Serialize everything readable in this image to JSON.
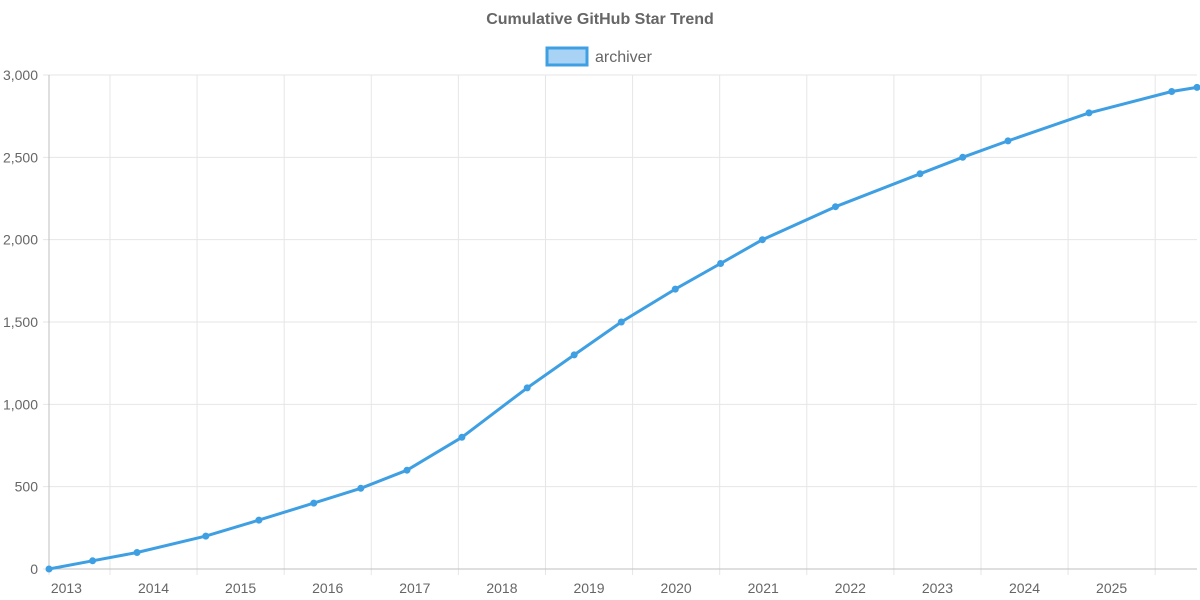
{
  "chart_data": {
    "type": "line",
    "title": "Cumulative GitHub Star Trend",
    "xlabel": "",
    "ylabel": "",
    "x_start": 2012.8,
    "x_end": 2025.98,
    "ylim": [
      0,
      3000
    ],
    "y_ticks": [
      0,
      500,
      1000,
      1500,
      2000,
      2500,
      3000
    ],
    "y_tick_labels": [
      "0",
      "500",
      "1,000",
      "1,500",
      "2,000",
      "2,500",
      "3,000"
    ],
    "x_ticks": [
      2013,
      2014,
      2015,
      2016,
      2017,
      2018,
      2019,
      2020,
      2021,
      2022,
      2023,
      2024,
      2025
    ],
    "x_tick_labels": [
      "2013",
      "2014",
      "2015",
      "2016",
      "2017",
      "2018",
      "2019",
      "2020",
      "2021",
      "2022",
      "2023",
      "2024",
      "2025"
    ],
    "grid": true,
    "legend_position": "top-center",
    "series": [
      {
        "name": "archiver",
        "color": "#3f9fe3",
        "fill": "#a9d3f5",
        "x": [
          2012.8,
          2013.3,
          2013.81,
          2014.6,
          2015.21,
          2015.84,
          2016.38,
          2016.91,
          2017.54,
          2018.29,
          2018.83,
          2019.37,
          2019.99,
          2020.51,
          2020.99,
          2021.83,
          2022.8,
          2023.29,
          2023.81,
          2024.74,
          2025.69,
          2025.98
        ],
        "values": [
          0,
          50,
          100,
          200,
          297,
          400,
          490,
          600,
          800,
          1100,
          1300,
          1500,
          1700,
          1855,
          2000,
          2200,
          2400,
          2500,
          2600,
          2770,
          2900,
          2925
        ]
      }
    ]
  }
}
